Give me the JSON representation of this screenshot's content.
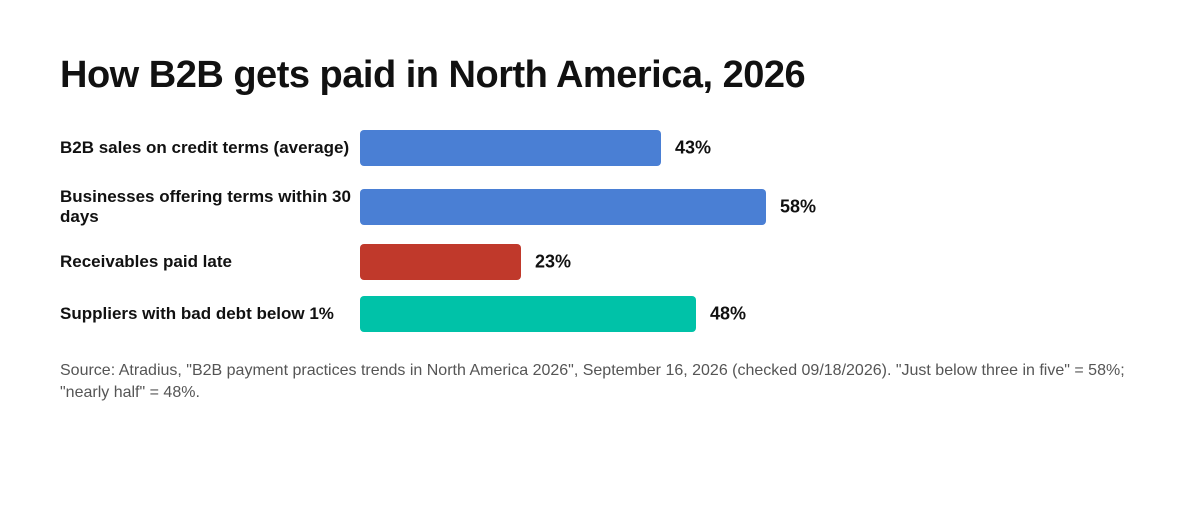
{
  "chart_data": {
    "type": "bar",
    "orientation": "horizontal",
    "title": "How B2B gets paid in North America, 2026",
    "categories": [
      "B2B sales on credit terms (average)",
      "Businesses offering terms within 30 days",
      "Receivables paid late",
      "Suppliers with bad debt below 1%"
    ],
    "values": [
      43,
      58,
      23,
      48
    ],
    "value_labels": [
      "43%",
      "58%",
      "23%",
      "48%"
    ],
    "colors": [
      "#4a7fd4",
      "#4a7fd4",
      "#c0392b",
      "#00c2a8"
    ],
    "unit": "%",
    "grid": false,
    "legend": "none"
  },
  "source_note": "Source: Atradius, \"B2B payment practices trends in North America 2026\", September 16, 2026 (checked 09/18/2026). \"Just below three in five\" = 58%; \"nearly half\" = 48%."
}
